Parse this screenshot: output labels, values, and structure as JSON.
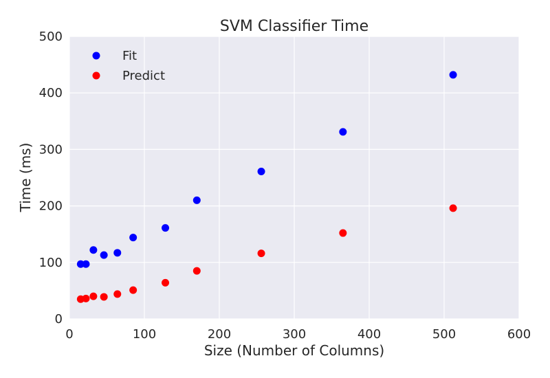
{
  "chart_data": {
    "type": "scatter",
    "title": "SVM Classifier Time",
    "xlabel": "Size (Number of Columns)",
    "ylabel": "Time (ms)",
    "xlim": [
      0,
      600
    ],
    "ylim": [
      0,
      500
    ],
    "xticks": [
      0,
      100,
      200,
      300,
      400,
      500,
      600
    ],
    "yticks": [
      0,
      100,
      200,
      300,
      400,
      500
    ],
    "grid": true,
    "legend_position": "top-left",
    "background_color": "#eaeaf2",
    "series": [
      {
        "name": "Fit",
        "color": "#0000ff",
        "x": [
          15,
          22,
          32,
          46,
          64,
          85,
          128,
          170,
          256,
          365,
          512
        ],
        "y": [
          97,
          97,
          122,
          113,
          117,
          144,
          161,
          210,
          261,
          331,
          432
        ]
      },
      {
        "name": "Predict",
        "color": "#ff0000",
        "x": [
          15,
          22,
          32,
          46,
          64,
          85,
          128,
          170,
          256,
          365,
          512
        ],
        "y": [
          35,
          36,
          40,
          39,
          44,
          51,
          64,
          85,
          116,
          152,
          196
        ]
      }
    ]
  }
}
